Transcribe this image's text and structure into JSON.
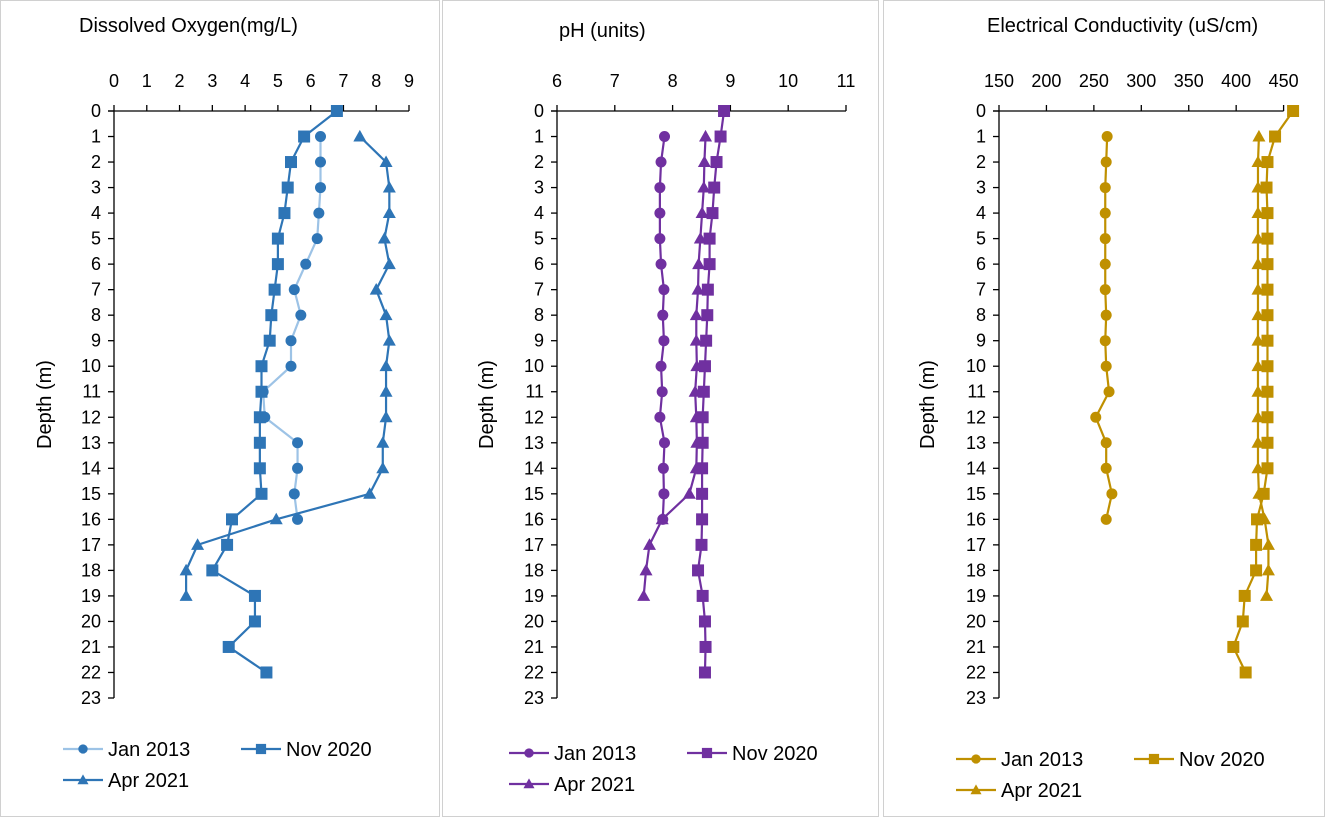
{
  "chart_data": [
    {
      "id": "do",
      "type": "line",
      "title": "Dissolved Oxygen(mg/L)",
      "xlabel": "Dissolved Oxygen(mg/L)",
      "ylabel": "Depth (m)",
      "xlim": [
        0,
        9
      ],
      "x_ticks": [
        "0",
        "1",
        "2",
        "3",
        "4",
        "5",
        "6",
        "7",
        "8",
        "9"
      ],
      "ylim": [
        0,
        23
      ],
      "y_ticks": [
        "0",
        "1",
        "2",
        "3",
        "4",
        "5",
        "6",
        "7",
        "8",
        "9",
        "10",
        "11",
        "12",
        "13",
        "14",
        "15",
        "16",
        "17",
        "18",
        "19",
        "20",
        "21",
        "22",
        "23"
      ],
      "y_inverted": true,
      "x_axis_position": "top",
      "grid": false,
      "legend_position": "bottom",
      "series": [
        {
          "name": "Jan 2013",
          "marker": "circle",
          "line_color": "#9dc3e6",
          "marker_color": "#2e75b6",
          "depth": [
            1,
            2,
            3,
            4,
            5,
            6,
            7,
            8,
            9,
            10,
            11,
            12,
            13,
            14,
            15,
            16
          ],
          "values": [
            6.3,
            6.3,
            6.3,
            6.25,
            6.2,
            5.85,
            5.5,
            5.7,
            5.4,
            5.4,
            4.55,
            4.6,
            5.6,
            5.6,
            5.5,
            5.6
          ]
        },
        {
          "name": "Nov 2020",
          "marker": "square",
          "line_color": "#2e75b6",
          "marker_color": "#2e75b6",
          "depth": [
            0,
            1,
            2,
            3,
            4,
            5,
            6,
            7,
            8,
            9,
            10,
            11,
            12,
            13,
            14,
            15,
            16,
            17,
            18,
            19,
            20,
            21,
            22
          ],
          "values": [
            6.8,
            5.8,
            5.4,
            5.3,
            5.2,
            5.0,
            5.0,
            4.9,
            4.8,
            4.75,
            4.5,
            4.5,
            4.45,
            4.45,
            4.45,
            4.5,
            3.6,
            3.45,
            3.0,
            4.3,
            4.3,
            3.5,
            4.65
          ]
        },
        {
          "name": "Apr 2021",
          "marker": "triangle",
          "line_color": "#2e75b6",
          "marker_color": "#2e75b6",
          "depth": [
            1,
            2,
            3,
            4,
            5,
            6,
            7,
            8,
            9,
            10,
            11,
            12,
            13,
            14,
            15,
            16,
            17,
            18,
            19
          ],
          "values": [
            7.5,
            8.3,
            8.4,
            8.4,
            8.25,
            8.4,
            8.0,
            8.3,
            8.4,
            8.3,
            8.3,
            8.3,
            8.2,
            8.2,
            7.8,
            4.95,
            2.55,
            2.2,
            2.2
          ]
        }
      ]
    },
    {
      "id": "ph",
      "type": "line",
      "title": "pH (units)",
      "xlabel": "pH (units)",
      "ylabel": "Depth (m)",
      "xlim": [
        6,
        11
      ],
      "x_ticks": [
        "6",
        "7",
        "8",
        "9",
        "10",
        "11"
      ],
      "ylim": [
        0,
        23
      ],
      "y_ticks": [
        "0",
        "1",
        "2",
        "3",
        "4",
        "5",
        "6",
        "7",
        "8",
        "9",
        "10",
        "11",
        "12",
        "13",
        "14",
        "15",
        "16",
        "17",
        "18",
        "19",
        "20",
        "21",
        "22",
        "23"
      ],
      "y_inverted": true,
      "x_axis_position": "top",
      "grid": false,
      "legend_position": "bottom",
      "series": [
        {
          "name": "Jan 2013",
          "marker": "circle",
          "line_color": "#7030a0",
          "marker_color": "#7030a0",
          "depth": [
            1,
            2,
            3,
            4,
            5,
            6,
            7,
            8,
            9,
            10,
            11,
            12,
            13,
            14,
            15,
            16
          ],
          "values": [
            7.86,
            7.8,
            7.78,
            7.78,
            7.78,
            7.8,
            7.85,
            7.83,
            7.85,
            7.8,
            7.82,
            7.78,
            7.86,
            7.84,
            7.85,
            7.83
          ]
        },
        {
          "name": "Nov 2020",
          "marker": "square",
          "line_color": "#7030a0",
          "marker_color": "#7030a0",
          "depth": [
            0,
            1,
            2,
            3,
            4,
            5,
            6,
            7,
            8,
            9,
            10,
            11,
            12,
            13,
            14,
            15,
            16,
            17,
            18,
            19,
            20,
            21,
            22
          ],
          "values": [
            8.89,
            8.83,
            8.76,
            8.72,
            8.69,
            8.64,
            8.64,
            8.61,
            8.6,
            8.58,
            8.56,
            8.54,
            8.52,
            8.52,
            8.51,
            8.51,
            8.51,
            8.5,
            8.44,
            8.52,
            8.56,
            8.57,
            8.56
          ]
        },
        {
          "name": "Apr 2021",
          "marker": "triangle",
          "line_color": "#7030a0",
          "marker_color": "#7030a0",
          "depth": [
            1,
            2,
            3,
            4,
            5,
            6,
            7,
            8,
            9,
            10,
            11,
            12,
            13,
            14,
            15,
            16,
            17,
            18,
            19
          ],
          "values": [
            8.57,
            8.55,
            8.54,
            8.51,
            8.48,
            8.45,
            8.44,
            8.41,
            8.41,
            8.42,
            8.39,
            8.41,
            8.42,
            8.41,
            8.29,
            7.82,
            7.6,
            7.54,
            7.5
          ]
        }
      ]
    },
    {
      "id": "ec",
      "type": "line",
      "title": "Electrical Conductivity (uS/cm)",
      "xlabel": "Electrical Conductivity (uS/cm)",
      "ylabel": "Depth (m)",
      "xlim": [
        150,
        460
      ],
      "x_ticks": [
        "150",
        "200",
        "250",
        "300",
        "350",
        "400",
        "450"
      ],
      "ylim": [
        0,
        23
      ],
      "y_ticks": [
        "0",
        "1",
        "2",
        "3",
        "4",
        "5",
        "6",
        "7",
        "8",
        "9",
        "10",
        "11",
        "12",
        "13",
        "14",
        "15",
        "16",
        "17",
        "18",
        "19",
        "20",
        "21",
        "22",
        "23"
      ],
      "y_inverted": true,
      "x_axis_position": "top",
      "grid": false,
      "legend_position": "bottom",
      "series": [
        {
          "name": "Jan 2013",
          "marker": "circle",
          "line_color": "#bf9000",
          "marker_color": "#bf9000",
          "depth": [
            1,
            2,
            3,
            4,
            5,
            6,
            7,
            8,
            9,
            10,
            11,
            12,
            13,
            14,
            15,
            16
          ],
          "values": [
            264,
            263,
            262,
            262,
            262,
            262,
            262,
            263,
            262,
            263,
            266,
            252,
            263,
            263,
            269,
            263
          ]
        },
        {
          "name": "Nov 2020",
          "marker": "square",
          "line_color": "#bf9000",
          "marker_color": "#bf9000",
          "depth": [
            0,
            1,
            2,
            3,
            4,
            5,
            6,
            7,
            8,
            9,
            10,
            11,
            12,
            13,
            14,
            15,
            16,
            17,
            18,
            19,
            20,
            21,
            22
          ],
          "values": [
            460,
            441,
            433,
            432,
            433,
            433,
            433,
            433,
            433,
            433,
            433,
            433,
            433,
            433,
            433,
            429,
            422,
            421,
            421,
            409,
            407,
            397,
            410
          ]
        },
        {
          "name": "Apr 2021",
          "marker": "triangle",
          "line_color": "#bf9000",
          "marker_color": "#bf9000",
          "depth": [
            1,
            2,
            3,
            4,
            5,
            6,
            7,
            8,
            9,
            10,
            11,
            12,
            13,
            14,
            15,
            16,
            17,
            18,
            19
          ],
          "values": [
            424,
            423,
            423,
            423,
            423,
            423,
            423,
            423,
            423,
            423,
            423,
            423,
            423,
            423,
            424,
            430,
            434,
            434,
            432
          ]
        }
      ]
    }
  ]
}
